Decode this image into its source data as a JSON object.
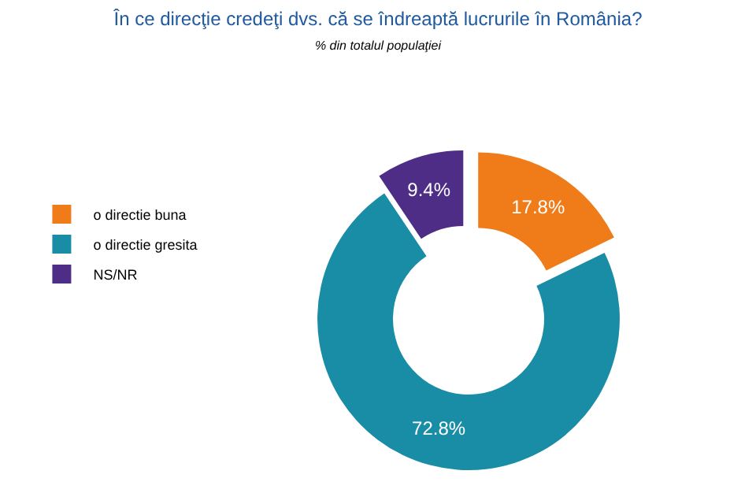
{
  "chart_data": {
    "type": "donut",
    "title": "În ce direcţie credeţi dvs. că se îndreaptă lucrurile în România?",
    "subtitle": "% din totalul populaţiei",
    "categories": [
      "o directie buna",
      "o directie gresita",
      "NS/NR"
    ],
    "values": [
      17.8,
      72.8,
      9.4
    ],
    "colors": [
      "#f07c19",
      "#1a8da6",
      "#4e2d87"
    ],
    "value_labels": [
      "17.8%",
      "72.8%",
      "9.4%"
    ],
    "legend": "left"
  }
}
